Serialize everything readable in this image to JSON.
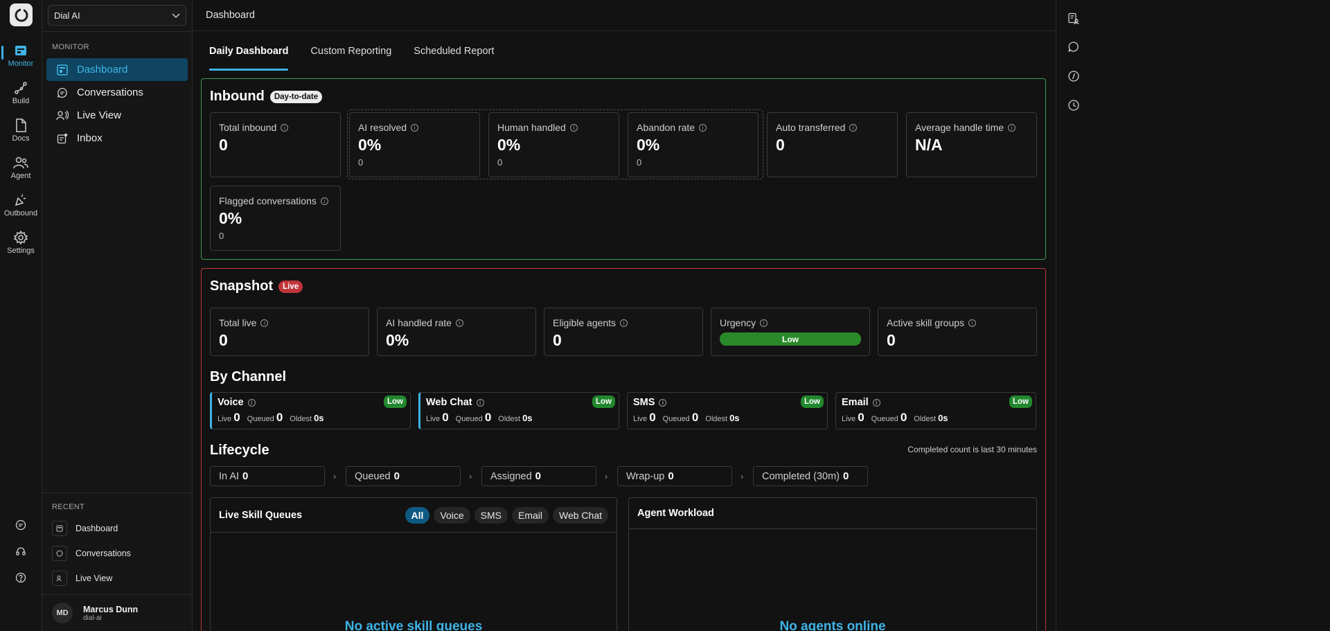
{
  "workspace": {
    "selected": "Dial AI"
  },
  "rail": {
    "items": [
      {
        "label": "Monitor",
        "icon": "monitor-icon"
      },
      {
        "label": "Build",
        "icon": "build-icon"
      },
      {
        "label": "Docs",
        "icon": "docs-icon"
      },
      {
        "label": "Agent",
        "icon": "agent-icon"
      },
      {
        "label": "Outbound",
        "icon": "outbound-icon"
      },
      {
        "label": "Settings",
        "icon": "gear-icon"
      }
    ]
  },
  "sidebar": {
    "section": "MONITOR",
    "items": [
      {
        "label": "Dashboard"
      },
      {
        "label": "Conversations"
      },
      {
        "label": "Live View"
      },
      {
        "label": "Inbox"
      }
    ],
    "recent_title": "RECENT",
    "recent": [
      {
        "label": "Dashboard"
      },
      {
        "label": "Conversations"
      },
      {
        "label": "Live View"
      }
    ]
  },
  "user": {
    "initials": "MD",
    "name": "Marcus Dunn",
    "org": "dial-ai"
  },
  "header": {
    "title": "Dashboard"
  },
  "tabs": [
    {
      "label": "Daily Dashboard"
    },
    {
      "label": "Custom Reporting"
    },
    {
      "label": "Scheduled Report"
    }
  ],
  "inbound": {
    "title": "Inbound",
    "badge": "Day-to-date",
    "cards": [
      {
        "label": "Total inbound",
        "value": "0",
        "sub": ""
      },
      {
        "label": "AI resolved",
        "value": "0%",
        "sub": "0"
      },
      {
        "label": "Human handled",
        "value": "0%",
        "sub": "0"
      },
      {
        "label": "Abandon rate",
        "value": "0%",
        "sub": "0"
      },
      {
        "label": "Auto transferred",
        "value": "0",
        "sub": ""
      },
      {
        "label": "Average handle time",
        "value": "N/A",
        "sub": ""
      },
      {
        "label": "Flagged conversations",
        "value": "0%",
        "sub": "0"
      }
    ]
  },
  "snapshot": {
    "title": "Snapshot",
    "badge": "Live",
    "cards": [
      {
        "label": "Total live",
        "value": "0"
      },
      {
        "label": "AI handled rate",
        "value": "0%"
      },
      {
        "label": "Eligible agents",
        "value": "0"
      },
      {
        "label": "Urgency",
        "value": "Low"
      },
      {
        "label": "Active skill groups",
        "value": "0"
      }
    ]
  },
  "by_channel": {
    "title": "By Channel",
    "stat_labels": {
      "live": "Live",
      "queued": "Queued",
      "oldest": "Oldest"
    },
    "channels": [
      {
        "name": "Voice",
        "urgency": "Low",
        "live": "0",
        "queued": "0",
        "oldest": "0s"
      },
      {
        "name": "Web Chat",
        "urgency": "Low",
        "live": "0",
        "queued": "0",
        "oldest": "0s"
      },
      {
        "name": "SMS",
        "urgency": "Low",
        "live": "0",
        "queued": "0",
        "oldest": "0s"
      },
      {
        "name": "Email",
        "urgency": "Low",
        "live": "0",
        "queued": "0",
        "oldest": "0s"
      }
    ]
  },
  "lifecycle": {
    "title": "Lifecycle",
    "note": "Completed count is last 30 minutes",
    "stages": [
      {
        "label": "In AI",
        "value": "0"
      },
      {
        "label": "Queued",
        "value": "0"
      },
      {
        "label": "Assigned",
        "value": "0"
      },
      {
        "label": "Wrap-up",
        "value": "0"
      },
      {
        "label": "Completed (30m)",
        "value": "0"
      }
    ],
    "arrow": "›"
  },
  "skill_queues": {
    "title": "Live Skill Queues",
    "filters": [
      "All",
      "Voice",
      "SMS",
      "Email",
      "Web Chat"
    ],
    "empty": "No active skill queues"
  },
  "agent_workload": {
    "title": "Agent Workload",
    "empty": "No agents online"
  },
  "colors": {
    "accent": "#3fb3e6",
    "inbound_border": "#3e9a52",
    "snapshot_border": "#b93a3a",
    "low": "#22882e"
  }
}
